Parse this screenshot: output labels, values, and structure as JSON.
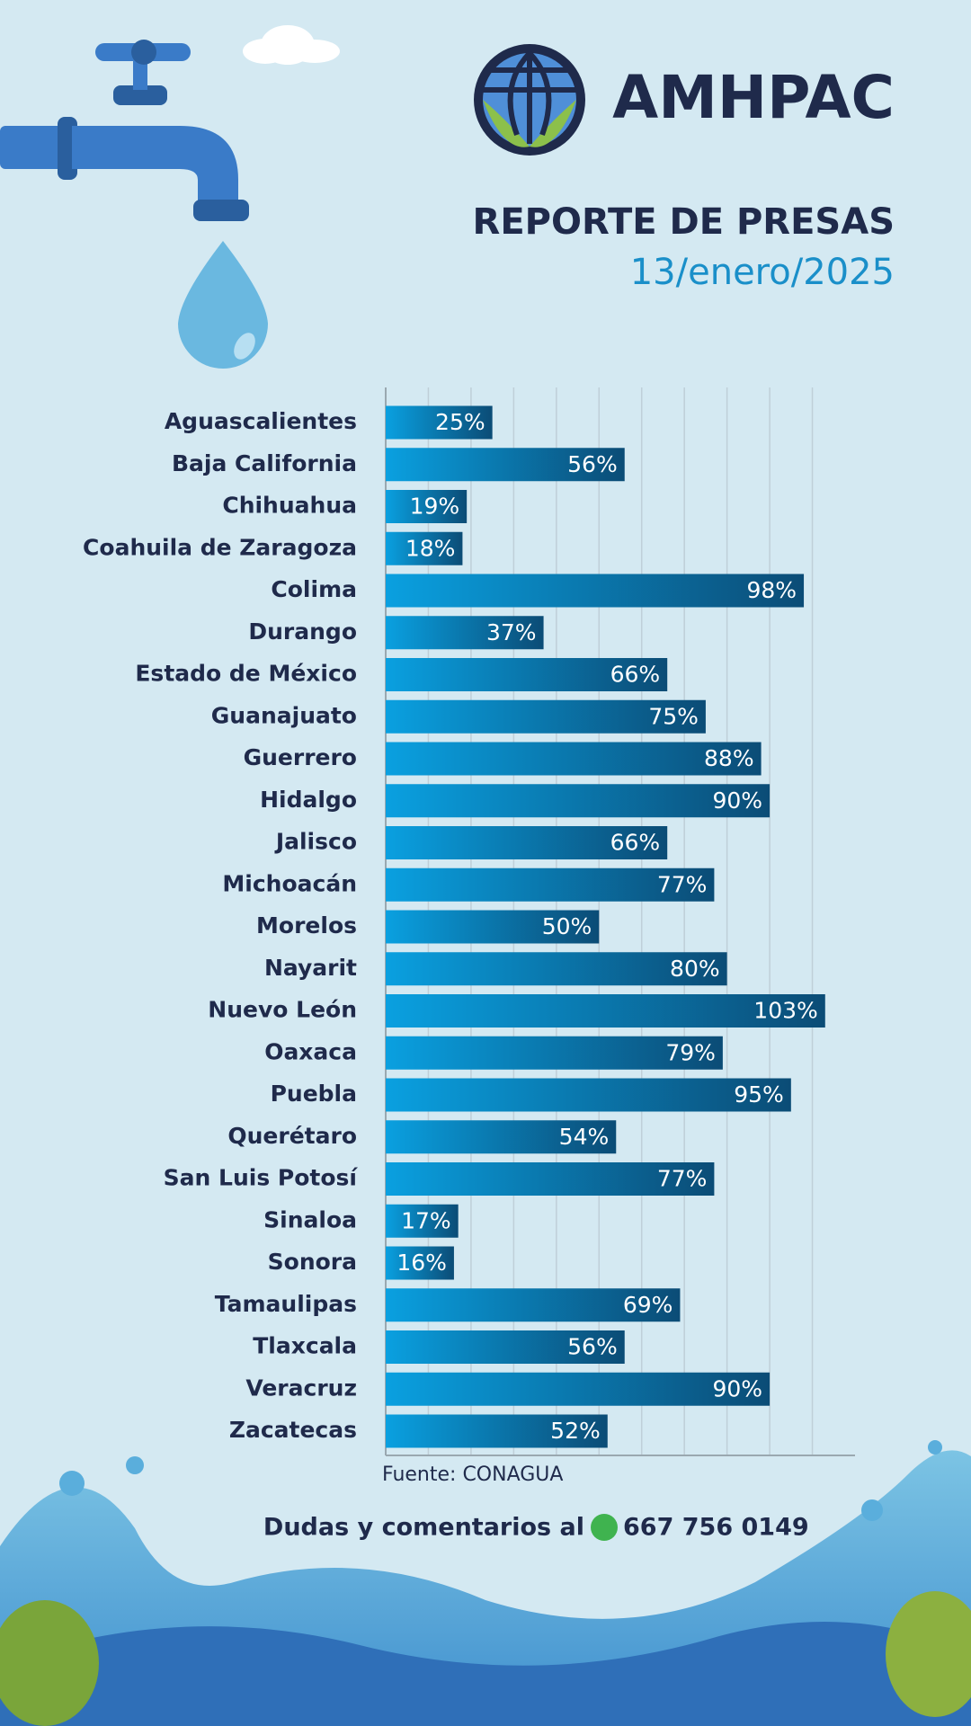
{
  "header": {
    "brand": "AMHPAC",
    "title": "REPORTE DE PRESAS",
    "date": "13/enero/2025"
  },
  "chart_data": {
    "type": "bar",
    "orientation": "horizontal",
    "categories": [
      "Aguascalientes",
      "Baja California",
      "Chihuahua",
      "Coahuila de Zaragoza",
      "Colima",
      "Durango",
      "Estado de México",
      "Guanajuato",
      "Guerrero",
      "Hidalgo",
      "Jalisco",
      "Michoacán",
      "Morelos",
      "Nayarit",
      "Nuevo León",
      "Oaxaca",
      "Puebla",
      "Querétaro",
      "San Luis Potosí",
      "Sinaloa",
      "Sonora",
      "Tamaulipas",
      "Tlaxcala",
      "Veracruz",
      "Zacatecas"
    ],
    "values": [
      25,
      56,
      19,
      18,
      98,
      37,
      66,
      75,
      88,
      90,
      66,
      77,
      50,
      80,
      103,
      79,
      95,
      54,
      77,
      17,
      16,
      69,
      56,
      90,
      52
    ],
    "value_labels": [
      "25%",
      "56%",
      "19%",
      "18%",
      "98%",
      "37%",
      "66%",
      "75%",
      "88%",
      "90%",
      "66%",
      "77%",
      "50%",
      "80%",
      "103%",
      "79%",
      "95%",
      "54%",
      "77%",
      "17%",
      "16%",
      "69%",
      "56%",
      "90%",
      "52%"
    ],
    "color": "#0b4c76",
    "xlim": [
      0,
      110
    ],
    "xticks": [
      0,
      10,
      20,
      30,
      40,
      50,
      60,
      70,
      80,
      90,
      100
    ],
    "grid": true
  },
  "footer": {
    "source": "Fuente: CONAGUA",
    "contact": "Dudas y comentarios al",
    "phone": "667 756 0149"
  }
}
